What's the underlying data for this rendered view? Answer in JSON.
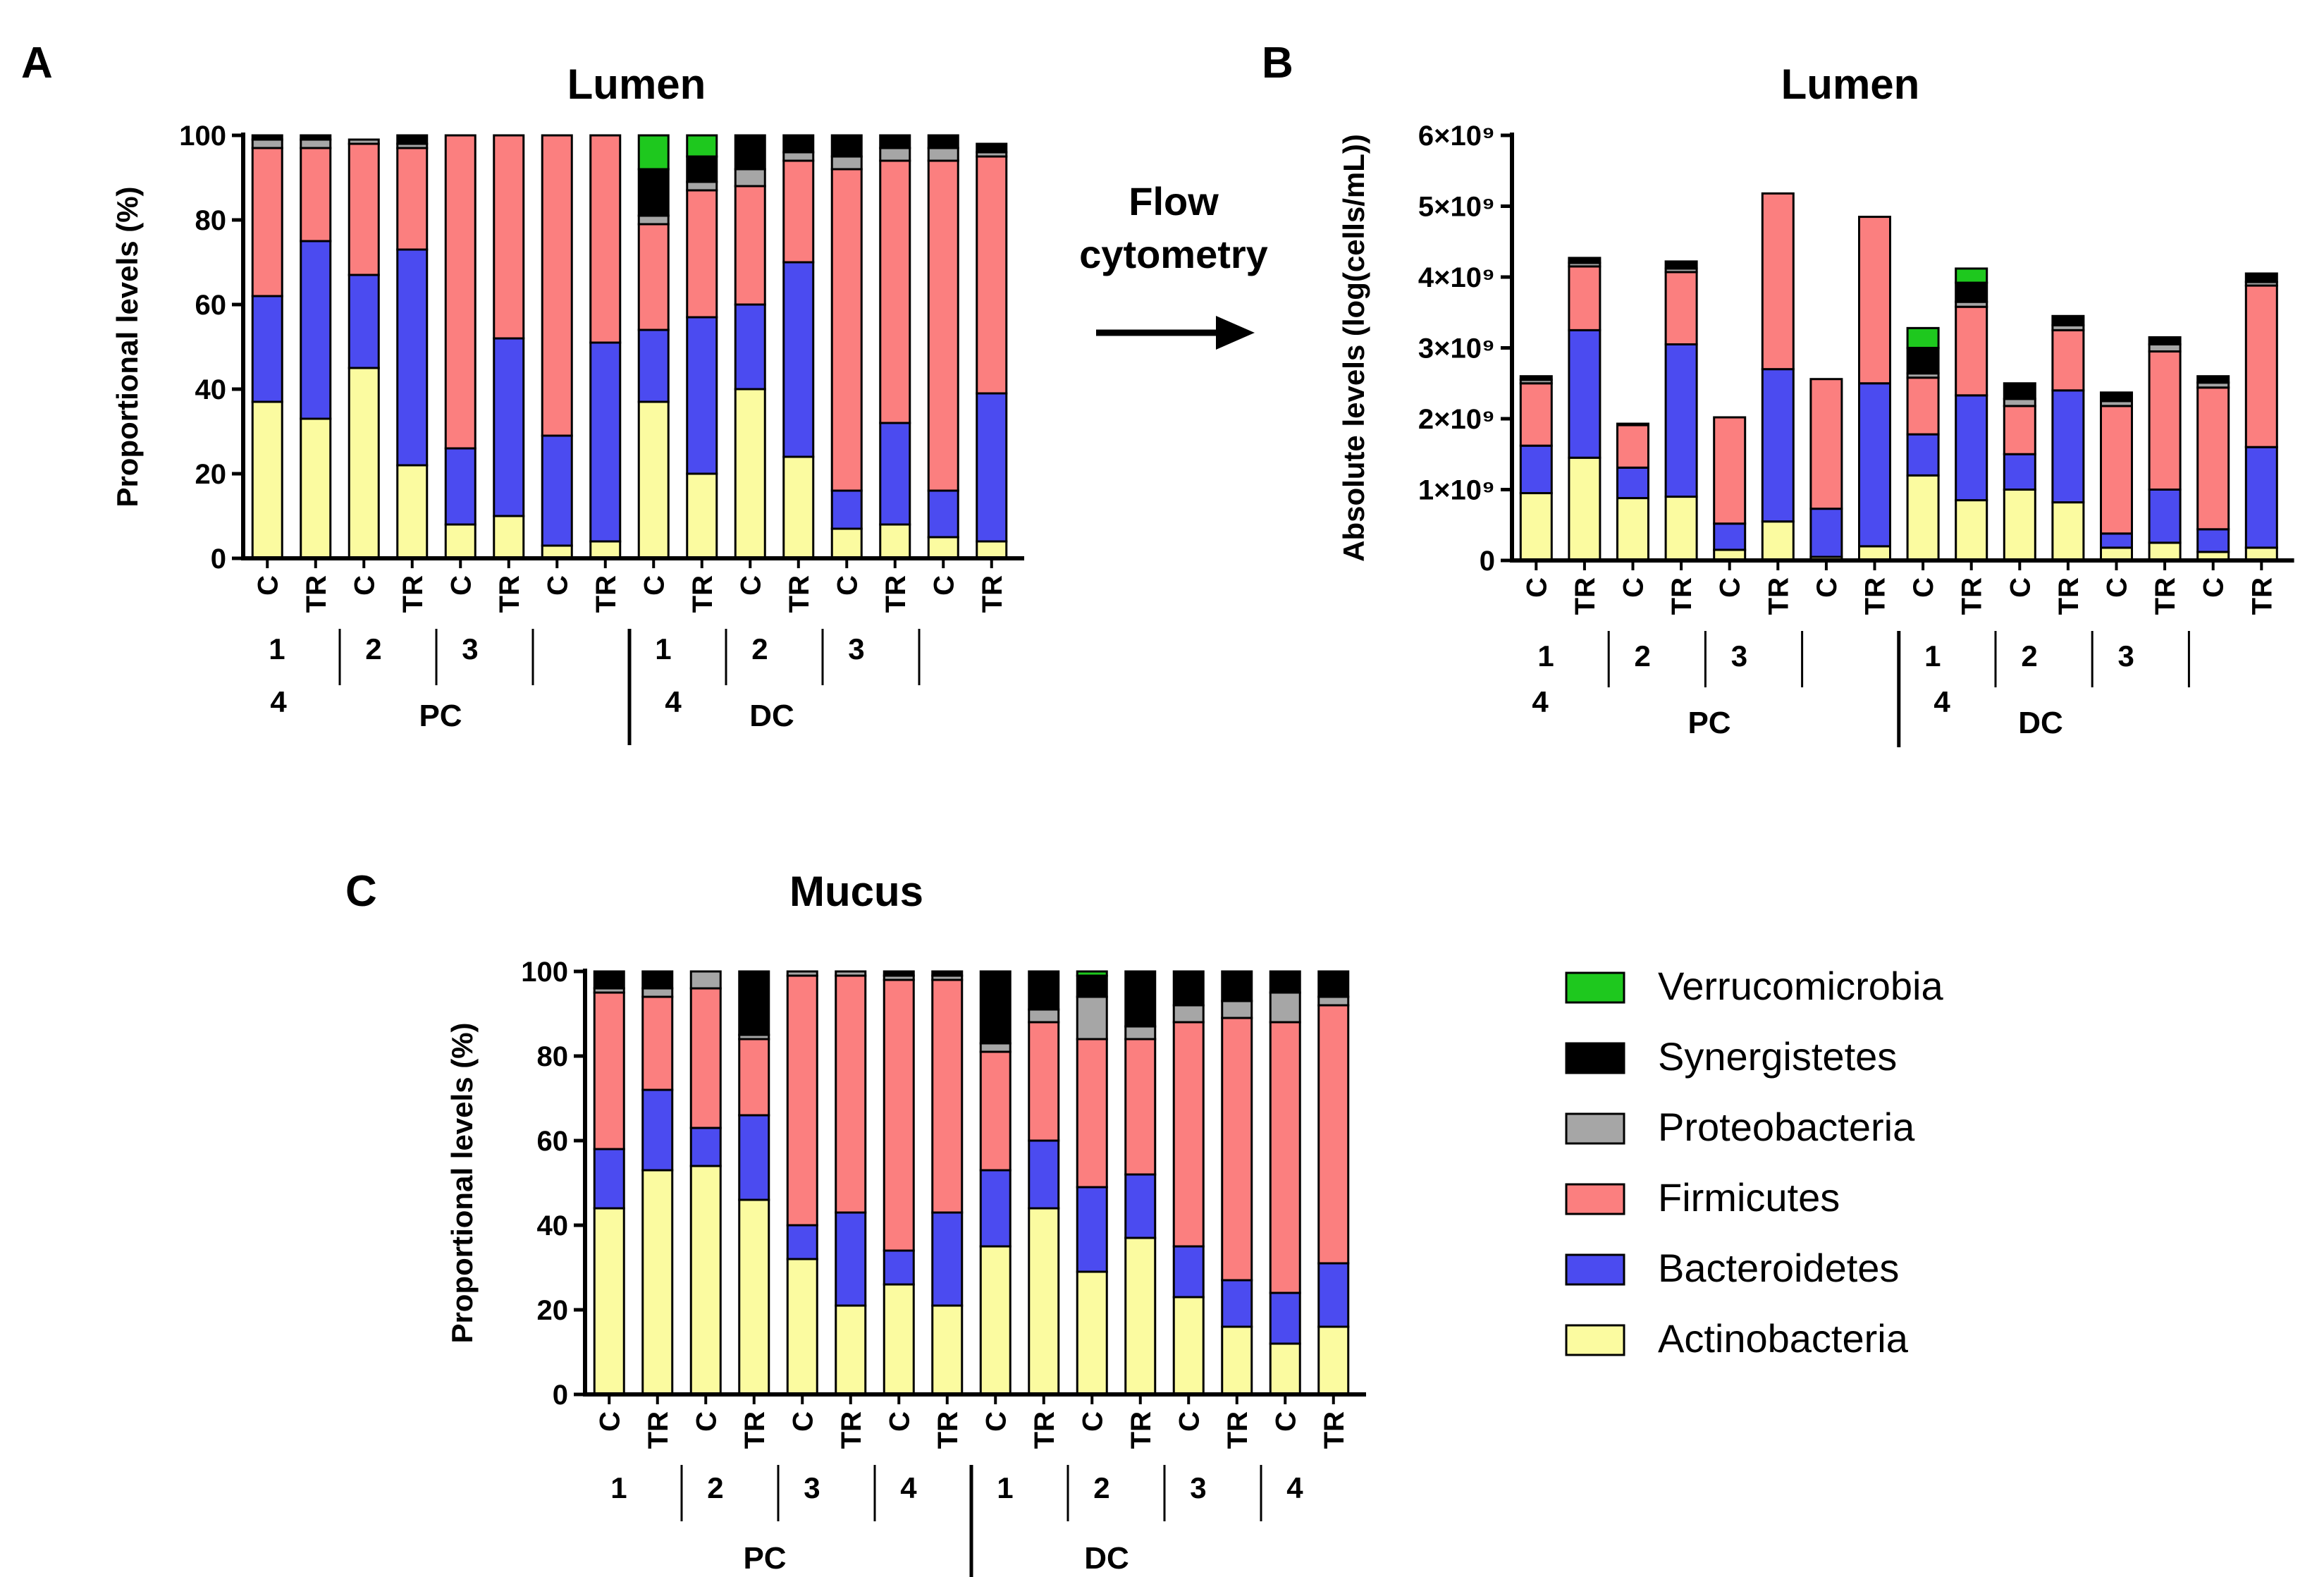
{
  "panels": {
    "a": {
      "letter": "A"
    },
    "b": {
      "letter": "B"
    },
    "c": {
      "letter": "C"
    }
  },
  "flow_label": {
    "line1": "Flow",
    "line2": "cytometry"
  },
  "colors": {
    "Verrucomicrobia": "#1ec81e",
    "Synergistetes": "#000000",
    "Proteobacteria": "#a6a6a6",
    "Firmicutes": "#fb7f7f",
    "Bacteroidetes": "#4b4bf0",
    "Actinobacteria": "#fbfba0"
  },
  "legend": {
    "items": [
      {
        "label": "Verrucomicrobia",
        "color": "#1ec81e"
      },
      {
        "label": "Synergistetes",
        "color": "#000000"
      },
      {
        "label": "Proteobacteria",
        "color": "#a6a6a6"
      },
      {
        "label": "Firmicutes",
        "color": "#fb7f7f"
      },
      {
        "label": "Bacteroidetes",
        "color": "#4b4bf0"
      },
      {
        "label": "Actinobacteria",
        "color": "#fbfba0"
      }
    ]
  },
  "chart_data": [
    {
      "panel": "A",
      "type": "bar",
      "stacked": true,
      "title": "Lumen",
      "ylabel": "Proportional levels (%)",
      "ylim": [
        0,
        100
      ],
      "yticks": [
        "0",
        "20",
        "40",
        "60",
        "80",
        "100"
      ],
      "categories": [
        "C",
        "TR",
        "C",
        "TR",
        "C",
        "TR",
        "C",
        "TR",
        "C",
        "TR",
        "C",
        "TR",
        "C",
        "TR",
        "C",
        "TR"
      ],
      "group_labels": [
        "1",
        "2",
        "3",
        "",
        "1",
        "2",
        "3",
        ""
      ],
      "group_labels_line2": [
        "4",
        "4"
      ],
      "region_labels": [
        "PC",
        "DC"
      ],
      "series": [
        {
          "name": "Actinobacteria",
          "values": [
            37,
            33,
            45,
            22,
            8,
            10,
            3,
            4,
            37,
            20,
            40,
            24,
            7,
            8,
            5,
            4
          ]
        },
        {
          "name": "Bacteroidetes",
          "values": [
            25,
            42,
            22,
            51,
            18,
            42,
            26,
            47,
            17,
            37,
            20,
            46,
            9,
            24,
            11,
            35
          ]
        },
        {
          "name": "Firmicutes",
          "values": [
            35,
            22,
            31,
            24,
            74,
            48,
            71,
            49,
            25,
            30,
            28,
            24,
            76,
            62,
            78,
            56
          ]
        },
        {
          "name": "Proteobacteria",
          "values": [
            2,
            2,
            1,
            1,
            0,
            0,
            0,
            0,
            2,
            2,
            4,
            2,
            3,
            3,
            3,
            1
          ]
        },
        {
          "name": "Synergistetes",
          "values": [
            1,
            1,
            0,
            2,
            0,
            0,
            0,
            0,
            11,
            6,
            8,
            4,
            5,
            3,
            3,
            2
          ]
        },
        {
          "name": "Verrucomicrobia",
          "values": [
            0,
            0,
            0,
            0,
            0,
            0,
            0,
            0,
            8,
            5,
            0,
            0,
            0,
            0,
            0,
            0
          ]
        }
      ]
    },
    {
      "panel": "B",
      "type": "bar",
      "stacked": true,
      "title": "Lumen",
      "ylabel": "Absolute levels (log(cells/mL))",
      "ylim": [
        0,
        6
      ],
      "yticks": [
        "0",
        "1×10⁹",
        "2×10⁹",
        "3×10⁹",
        "4×10⁹",
        "5×10⁹",
        "6×10⁹"
      ],
      "categories": [
        "C",
        "TR",
        "C",
        "TR",
        "C",
        "TR",
        "C",
        "TR",
        "C",
        "TR",
        "C",
        "TR",
        "C",
        "TR",
        "C",
        "TR"
      ],
      "group_labels": [
        "1",
        "2",
        "3",
        "",
        "1",
        "2",
        "3",
        ""
      ],
      "group_labels_line2": [
        "4",
        "4"
      ],
      "region_labels": [
        "PC",
        "DC"
      ],
      "series": [
        {
          "name": "Actinobacteria",
          "values": [
            0.95,
            1.45,
            0.88,
            0.9,
            0.15,
            0.55,
            0.05,
            0.2,
            1.2,
            0.85,
            1.0,
            0.82,
            0.18,
            0.25,
            0.12,
            0.18
          ]
        },
        {
          "name": "Bacteroidetes",
          "values": [
            0.67,
            1.8,
            0.43,
            2.15,
            0.37,
            2.15,
            0.68,
            2.3,
            0.58,
            1.48,
            0.5,
            1.58,
            0.2,
            0.75,
            0.32,
            1.42
          ]
        },
        {
          "name": "Firmicutes",
          "values": [
            0.88,
            0.9,
            0.6,
            1.02,
            1.5,
            2.48,
            1.83,
            2.35,
            0.8,
            1.25,
            0.68,
            0.85,
            1.8,
            1.95,
            2.0,
            2.28
          ]
        },
        {
          "name": "Proteobacteria",
          "values": [
            0.05,
            0.05,
            0.02,
            0.05,
            0.0,
            0.0,
            0.0,
            0.0,
            0.06,
            0.07,
            0.1,
            0.07,
            0.07,
            0.1,
            0.07,
            0.05
          ]
        },
        {
          "name": "Synergistetes",
          "values": [
            0.05,
            0.07,
            0.0,
            0.1,
            0.0,
            0.0,
            0.0,
            0.0,
            0.36,
            0.27,
            0.22,
            0.13,
            0.12,
            0.1,
            0.09,
            0.12
          ]
        },
        {
          "name": "Verrucomicrobia",
          "values": [
            0,
            0,
            0,
            0,
            0,
            0,
            0,
            0,
            0.28,
            0.2,
            0,
            0,
            0,
            0,
            0,
            0
          ]
        }
      ]
    },
    {
      "panel": "C",
      "type": "bar",
      "stacked": true,
      "title": "Mucus",
      "ylabel": "Proportional levels (%)",
      "ylim": [
        0,
        100
      ],
      "yticks": [
        "0",
        "20",
        "40",
        "60",
        "80",
        "100"
      ],
      "categories": [
        "C",
        "TR",
        "C",
        "TR",
        "C",
        "TR",
        "C",
        "TR",
        "C",
        "TR",
        "C",
        "TR",
        "C",
        "TR",
        "C",
        "TR"
      ],
      "group_labels": [
        "1",
        "2",
        "3",
        "4",
        "1",
        "2",
        "3",
        "4"
      ],
      "region_labels": [
        "PC",
        "DC"
      ],
      "series": [
        {
          "name": "Actinobacteria",
          "values": [
            44,
            53,
            54,
            46,
            32,
            21,
            26,
            21,
            35,
            44,
            29,
            37,
            23,
            16,
            12,
            16
          ]
        },
        {
          "name": "Bacteroidetes",
          "values": [
            14,
            19,
            9,
            20,
            8,
            22,
            8,
            22,
            18,
            16,
            20,
            15,
            12,
            11,
            12,
            15
          ]
        },
        {
          "name": "Firmicutes",
          "values": [
            37,
            22,
            33,
            18,
            59,
            56,
            64,
            55,
            28,
            28,
            35,
            32,
            53,
            62,
            64,
            61
          ]
        },
        {
          "name": "Proteobacteria",
          "values": [
            1,
            2,
            4,
            1,
            1,
            1,
            1,
            1,
            2,
            3,
            10,
            3,
            4,
            4,
            7,
            2
          ]
        },
        {
          "name": "Synergistetes",
          "values": [
            4,
            4,
            0,
            15,
            0,
            0,
            1,
            1,
            17,
            9,
            5,
            13,
            8,
            7,
            5,
            6
          ]
        },
        {
          "name": "Verrucomicrobia",
          "values": [
            0,
            0,
            0,
            0,
            0,
            0,
            0,
            0,
            0,
            0,
            1,
            0,
            0,
            0,
            0,
            0
          ]
        }
      ]
    }
  ]
}
